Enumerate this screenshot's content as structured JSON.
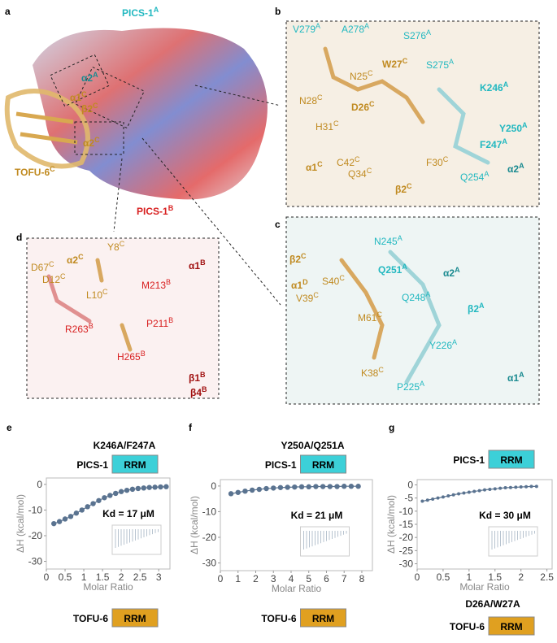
{
  "structure": {
    "panels": [
      "a",
      "b",
      "c",
      "d"
    ],
    "a_labels": [
      {
        "text": "PICS-1",
        "sup": "A"
      },
      {
        "text": "α2",
        "sup": "A"
      },
      {
        "text": "α1",
        "sup": "C"
      },
      {
        "text": "β2",
        "sup": "C"
      },
      {
        "text": "α2",
        "sup": "C"
      },
      {
        "text": "TOFU-6",
        "sup": "C"
      },
      {
        "text": "PICS-1",
        "sup": "B"
      }
    ],
    "b_labels": [
      {
        "text": "V279",
        "sup": "A"
      },
      {
        "text": "A278",
        "sup": "A"
      },
      {
        "text": "S276",
        "sup": "A"
      },
      {
        "text": "W27",
        "sup": "C"
      },
      {
        "text": "S275",
        "sup": "A"
      },
      {
        "text": "N25",
        "sup": "C"
      },
      {
        "text": "K246",
        "sup": "A"
      },
      {
        "text": "N28",
        "sup": "C"
      },
      {
        "text": "D26",
        "sup": "C"
      },
      {
        "text": "H31",
        "sup": "C"
      },
      {
        "text": "Y250",
        "sup": "A"
      },
      {
        "text": "F247",
        "sup": "A"
      },
      {
        "text": "C42",
        "sup": "C"
      },
      {
        "text": "F30",
        "sup": "C"
      },
      {
        "text": "α2",
        "sup": "A"
      },
      {
        "text": "α1",
        "sup": "C"
      },
      {
        "text": "Q34",
        "sup": "C"
      },
      {
        "text": "Q254",
        "sup": "A"
      },
      {
        "text": "β2",
        "sup": "C"
      }
    ],
    "c_labels": [
      {
        "text": "N245",
        "sup": "A"
      },
      {
        "text": "β2",
        "sup": "C"
      },
      {
        "text": "Q251",
        "sup": "A"
      },
      {
        "text": "α2",
        "sup": "A"
      },
      {
        "text": "α1",
        "sup": "D"
      },
      {
        "text": "S40",
        "sup": "C"
      },
      {
        "text": "Q248",
        "sup": "A"
      },
      {
        "text": "V39",
        "sup": "C"
      },
      {
        "text": "β2",
        "sup": "A"
      },
      {
        "text": "M61",
        "sup": "C"
      },
      {
        "text": "Y226",
        "sup": "A"
      },
      {
        "text": "K38",
        "sup": "C"
      },
      {
        "text": "α1",
        "sup": "A"
      },
      {
        "text": "P225",
        "sup": "A"
      }
    ],
    "d_labels": [
      {
        "text": "Y8",
        "sup": "C"
      },
      {
        "text": "D67",
        "sup": "C"
      },
      {
        "text": "α2",
        "sup": "C"
      },
      {
        "text": "α1",
        "sup": "B"
      },
      {
        "text": "D12",
        "sup": "C"
      },
      {
        "text": "M213",
        "sup": "B"
      },
      {
        "text": "L10",
        "sup": "C"
      },
      {
        "text": "R263",
        "sup": "B"
      },
      {
        "text": "P211",
        "sup": "B"
      },
      {
        "text": "H265",
        "sup": "B"
      },
      {
        "text": "β1",
        "sup": "B"
      },
      {
        "text": "β4",
        "sup": "B"
      }
    ]
  },
  "chart_data": [
    {
      "type": "scatter",
      "panel": "e",
      "pics_mutant": "K246A/F247A",
      "pics": "PICS-1",
      "domain": "RRM",
      "tofu": "TOFU-6",
      "domain_b": "RRM",
      "kd": "Kd = 17 μM",
      "x_label": "Molar Ratio",
      "y_label": "ΔH (kcal/mol)",
      "color": "#5a7390",
      "x": [
        0.2,
        0.35,
        0.5,
        0.65,
        0.8,
        0.95,
        1.1,
        1.25,
        1.4,
        1.55,
        1.7,
        1.85,
        2.0,
        2.15,
        2.3,
        2.45,
        2.6,
        2.75,
        2.9,
        3.05,
        3.2
      ],
      "values": [
        -15.3,
        -14.5,
        -13.5,
        -12.5,
        -11.2,
        -10,
        -8.7,
        -7.5,
        -6.3,
        -5.2,
        -4.3,
        -3.5,
        -2.8,
        -2.3,
        -1.9,
        -1.6,
        -1.4,
        -1.2,
        -1.1,
        -1.0,
        -0.9
      ],
      "xlim": [
        0,
        3.3
      ],
      "ylim": [
        -33,
        2.5
      ],
      "xticks": [
        0,
        0.5,
        1,
        1.5,
        2,
        2.5,
        3
      ],
      "yticks": [
        0,
        -10,
        -20,
        -30
      ]
    },
    {
      "type": "scatter",
      "panel": "f",
      "pics_mutant": "Y250A/Q251A",
      "pics": "PICS-1",
      "domain": "RRM",
      "tofu": "TOFU-6",
      "domain_b": "RRM",
      "kd": "Kd = 21 μM",
      "x_label": "Molar Ratio",
      "y_label": "ΔH (kcal/mol)",
      "color": "#5a7390",
      "x": [
        0.6,
        1.0,
        1.4,
        1.8,
        2.2,
        2.6,
        3.0,
        3.4,
        3.8,
        4.2,
        4.6,
        5.0,
        5.4,
        5.8,
        6.2,
        6.6,
        7.0,
        7.4,
        7.8
      ],
      "values": [
        -3,
        -2.5,
        -2,
        -1.6,
        -1.3,
        -1,
        -0.8,
        -0.6,
        -0.5,
        -0.4,
        -0.3,
        -0.3,
        -0.2,
        -0.2,
        -0.2,
        -0.2,
        -0.1,
        -0.1,
        -0.1
      ],
      "xlim": [
        0,
        8.6
      ],
      "ylim": [
        -33,
        2.5
      ],
      "xticks": [
        0,
        1,
        2,
        3,
        4,
        5,
        6,
        7,
        8
      ],
      "yticks": [
        0,
        -10,
        -20,
        -30
      ]
    },
    {
      "type": "scatter",
      "panel": "g",
      "tofu_mutant": "D26A/W27A",
      "pics": "PICS-1",
      "domain": "RRM",
      "tofu": "TOFU-6",
      "domain_b": "RRM",
      "kd": "Kd = 30 μM",
      "x_label": "Molar Ratio",
      "y_label": "ΔH (kcal/mol)",
      "color": "#5a7390",
      "x": [
        0.1,
        0.2,
        0.3,
        0.4,
        0.5,
        0.6,
        0.7,
        0.8,
        0.9,
        1.0,
        1.1,
        1.2,
        1.3,
        1.4,
        1.5,
        1.6,
        1.7,
        1.8,
        1.9,
        2.0,
        2.1,
        2.2,
        2.3
      ],
      "values": [
        -6.2,
        -5.8,
        -5.4,
        -5.0,
        -4.6,
        -4.2,
        -3.8,
        -3.4,
        -3.1,
        -2.8,
        -2.5,
        -2.2,
        -1.9,
        -1.7,
        -1.5,
        -1.3,
        -1.1,
        -1.0,
        -0.9,
        -0.8,
        -0.7,
        -0.6,
        -0.6
      ],
      "xlim": [
        0,
        2.6
      ],
      "ylim": [
        -32,
        2
      ],
      "xticks": [
        0,
        0.5,
        1,
        1.5,
        2,
        2.5
      ],
      "yticks": [
        0,
        -5,
        -10,
        -15,
        -20,
        -25,
        -30
      ]
    }
  ]
}
